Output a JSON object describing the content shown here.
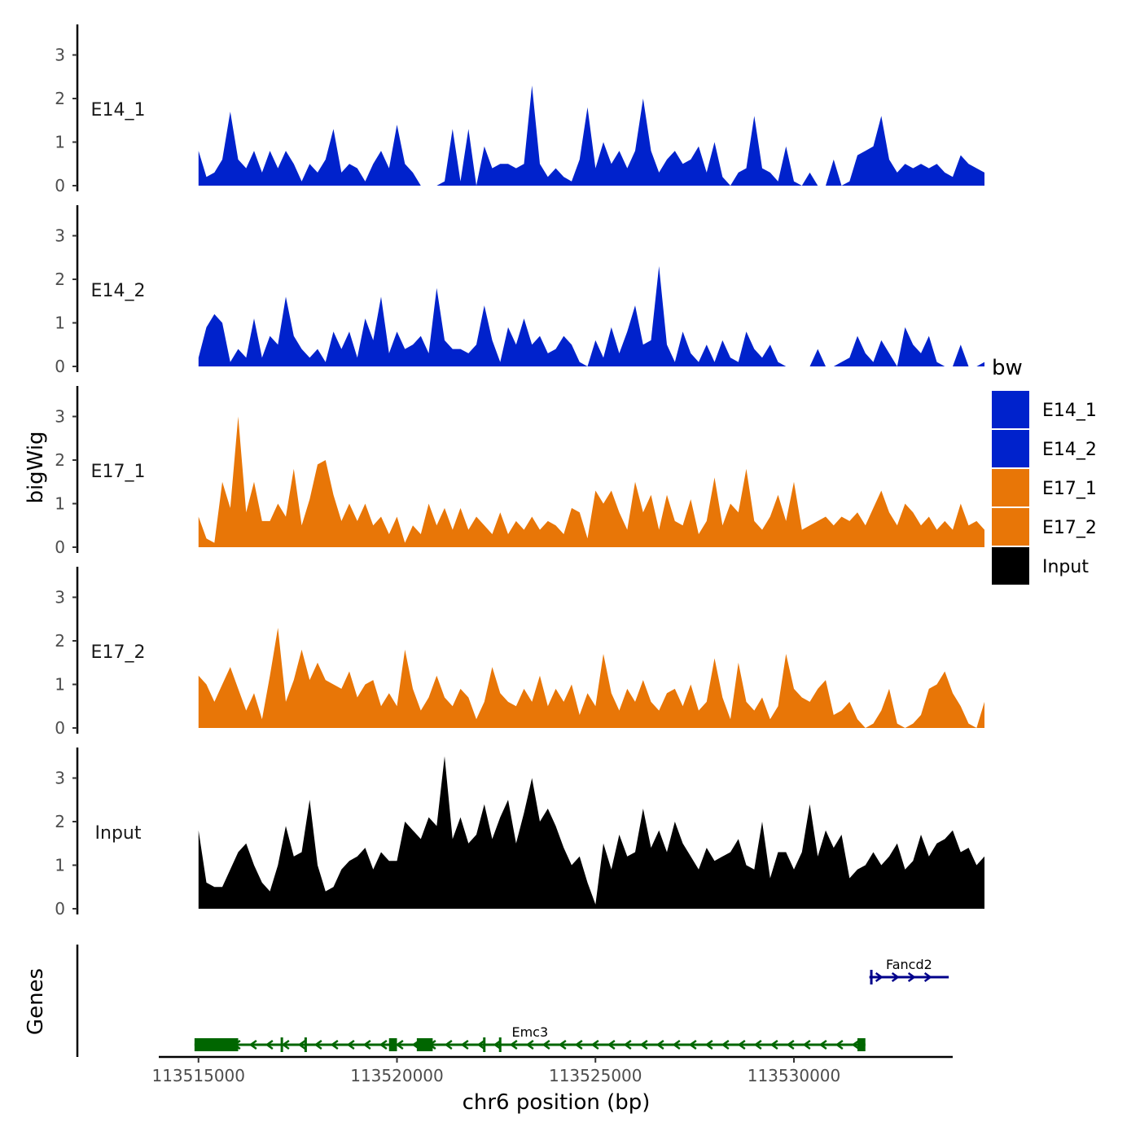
{
  "chart_data": {
    "type": "area",
    "chromosome": "chr6",
    "xlabel": "chr6 position (bp)",
    "ylabel": "bigWig",
    "genes_label": "Genes",
    "xlim": [
      113514000,
      113534000
    ],
    "x_ticks": [
      113515000,
      113520000,
      113525000,
      113530000
    ],
    "x_tick_labels": [
      "113515000",
      "113520000",
      "113525000",
      "113530000"
    ],
    "ylim": [
      0,
      3.6
    ],
    "y_ticks": [
      0,
      1,
      2,
      3
    ],
    "y_tick_labels": [
      "0",
      "1",
      "2",
      "3"
    ],
    "bin_start": 113515000,
    "bin_size": 200,
    "legend": {
      "title": "bw",
      "entries": [
        {
          "label": "E14_1",
          "color": "#0022cc"
        },
        {
          "label": "E14_2",
          "color": "#0022cc"
        },
        {
          "label": "E17_1",
          "color": "#e87607"
        },
        {
          "label": "E17_2",
          "color": "#e87607"
        },
        {
          "label": "Input",
          "color": "#000000"
        }
      ]
    },
    "series": [
      {
        "name": "E14_1",
        "color": "#0022cc",
        "values": [
          0.8,
          0.2,
          0.3,
          0.6,
          1.7,
          0.6,
          0.4,
          0.8,
          0.3,
          0.8,
          0.4,
          0.8,
          0.5,
          0.1,
          0.5,
          0.3,
          0.6,
          1.3,
          0.3,
          0.5,
          0.4,
          0.1,
          0.5,
          0.8,
          0.4,
          1.4,
          0.5,
          0.3,
          0,
          0,
          0,
          0.1,
          1.3,
          0.1,
          1.3,
          0,
          0.9,
          0.4,
          0.5,
          0.5,
          0.4,
          0.5,
          2.3,
          0.5,
          0.2,
          0.4,
          0.2,
          0.1,
          0.6,
          1.8,
          0.4,
          1.0,
          0.5,
          0.8,
          0.4,
          0.8,
          2.0,
          0.8,
          0.3,
          0.6,
          0.8,
          0.5,
          0.6,
          0.9,
          0.3,
          1.0,
          0.2,
          0,
          0.3,
          0.4,
          1.6,
          0.4,
          0.3,
          0.1,
          0.9,
          0.1,
          0,
          0.3,
          0,
          0,
          0.6,
          0,
          0.1,
          0.7,
          0.8,
          0.9,
          1.6,
          0.6,
          0.3,
          0.5,
          0.4,
          0.5,
          0.4,
          0.5,
          0.3,
          0.2,
          0.7,
          0.5,
          0.4,
          0.3
        ]
      },
      {
        "name": "E14_2",
        "color": "#0022cc",
        "values": [
          0.2,
          0.9,
          1.2,
          1.0,
          0.1,
          0.4,
          0.2,
          1.1,
          0.2,
          0.7,
          0.5,
          1.6,
          0.7,
          0.4,
          0.2,
          0.4,
          0.1,
          0.8,
          0.4,
          0.8,
          0.2,
          1.1,
          0.6,
          1.6,
          0.3,
          0.8,
          0.4,
          0.5,
          0.7,
          0.3,
          1.8,
          0.6,
          0.4,
          0.4,
          0.3,
          0.5,
          1.4,
          0.6,
          0.1,
          0.9,
          0.5,
          1.1,
          0.5,
          0.7,
          0.3,
          0.4,
          0.7,
          0.5,
          0.1,
          0,
          0.6,
          0.2,
          0.9,
          0.3,
          0.8,
          1.4,
          0.5,
          0.6,
          2.3,
          0.5,
          0.1,
          0.8,
          0.3,
          0.1,
          0.5,
          0.1,
          0.6,
          0.2,
          0.1,
          0.8,
          0.4,
          0.2,
          0.5,
          0.1,
          0,
          0,
          0,
          0,
          0.4,
          0,
          0,
          0.1,
          0.2,
          0.7,
          0.3,
          0.1,
          0.6,
          0.3,
          0,
          0.9,
          0.5,
          0.3,
          0.7,
          0.1,
          0,
          0,
          0.5,
          0,
          0,
          0.1
        ]
      },
      {
        "name": "E17_1",
        "color": "#e87607",
        "values": [
          0.7,
          0.2,
          0.1,
          1.5,
          0.9,
          3.0,
          0.8,
          1.5,
          0.6,
          0.6,
          1.0,
          0.7,
          1.8,
          0.5,
          1.1,
          1.9,
          2.0,
          1.2,
          0.6,
          1.0,
          0.6,
          1.0,
          0.5,
          0.7,
          0.3,
          0.7,
          0.1,
          0.5,
          0.3,
          1.0,
          0.5,
          0.9,
          0.4,
          0.9,
          0.4,
          0.7,
          0.5,
          0.3,
          0.8,
          0.3,
          0.6,
          0.4,
          0.7,
          0.4,
          0.6,
          0.5,
          0.3,
          0.9,
          0.8,
          0.2,
          1.3,
          1.0,
          1.3,
          0.8,
          0.4,
          1.5,
          0.8,
          1.2,
          0.4,
          1.2,
          0.6,
          0.5,
          1.1,
          0.3,
          0.6,
          1.6,
          0.5,
          1.0,
          0.8,
          1.8,
          0.6,
          0.4,
          0.7,
          1.2,
          0.6,
          1.5,
          0.4,
          0.5,
          0.6,
          0.7,
          0.5,
          0.7,
          0.6,
          0.8,
          0.5,
          0.9,
          1.3,
          0.8,
          0.5,
          1.0,
          0.8,
          0.5,
          0.7,
          0.4,
          0.6,
          0.4,
          1.0,
          0.5,
          0.6,
          0.4
        ]
      },
      {
        "name": "E17_2",
        "color": "#e87607",
        "values": [
          1.2,
          1.0,
          0.6,
          1.0,
          1.4,
          0.9,
          0.4,
          0.8,
          0.2,
          1.2,
          2.3,
          0.6,
          1.1,
          1.8,
          1.1,
          1.5,
          1.1,
          1.0,
          0.9,
          1.3,
          0.7,
          1.0,
          1.1,
          0.5,
          0.8,
          0.5,
          1.8,
          0.9,
          0.4,
          0.7,
          1.2,
          0.7,
          0.5,
          0.9,
          0.7,
          0.2,
          0.6,
          1.4,
          0.8,
          0.6,
          0.5,
          0.9,
          0.6,
          1.2,
          0.5,
          0.9,
          0.6,
          1.0,
          0.3,
          0.8,
          0.5,
          1.7,
          0.8,
          0.4,
          0.9,
          0.6,
          1.1,
          0.6,
          0.4,
          0.8,
          0.9,
          0.5,
          1.0,
          0.4,
          0.6,
          1.6,
          0.7,
          0.2,
          1.5,
          0.6,
          0.4,
          0.7,
          0.2,
          0.5,
          1.7,
          0.9,
          0.7,
          0.6,
          0.9,
          1.1,
          0.3,
          0.4,
          0.6,
          0.2,
          0,
          0.1,
          0.4,
          0.9,
          0.1,
          0,
          0.1,
          0.3,
          0.9,
          1.0,
          1.3,
          0.8,
          0.5,
          0.1,
          0,
          0.6
        ]
      },
      {
        "name": "Input",
        "color": "#000000",
        "values": [
          1.8,
          0.6,
          0.5,
          0.5,
          0.9,
          1.3,
          1.5,
          1.0,
          0.6,
          0.4,
          1.0,
          1.9,
          1.2,
          1.3,
          2.5,
          1.0,
          0.4,
          0.5,
          0.9,
          1.1,
          1.2,
          1.4,
          0.9,
          1.3,
          1.1,
          1.1,
          2.0,
          1.8,
          1.6,
          2.1,
          1.9,
          3.5,
          1.6,
          2.1,
          1.5,
          1.7,
          2.4,
          1.6,
          2.1,
          2.5,
          1.5,
          2.2,
          3.0,
          2.0,
          2.3,
          1.9,
          1.4,
          1.0,
          1.2,
          0.6,
          0.1,
          1.5,
          0.9,
          1.7,
          1.2,
          1.3,
          2.3,
          1.4,
          1.8,
          1.3,
          2.0,
          1.5,
          1.2,
          0.9,
          1.4,
          1.1,
          1.2,
          1.3,
          1.6,
          1.0,
          0.9,
          2.0,
          0.7,
          1.3,
          1.3,
          0.9,
          1.3,
          2.4,
          1.2,
          1.8,
          1.4,
          1.7,
          0.7,
          0.9,
          1.0,
          1.3,
          1.0,
          1.2,
          1.5,
          0.9,
          1.1,
          1.7,
          1.2,
          1.5,
          1.6,
          1.8,
          1.3,
          1.4,
          1.0,
          1.2
        ]
      }
    ],
    "genes": [
      {
        "name": "Emc3",
        "start": 113514900,
        "end": 113531800,
        "strand": "-",
        "color": "#006600",
        "exons": [
          [
            113514900,
            113516000
          ],
          [
            113519800,
            113520000
          ],
          [
            113520500,
            113520900
          ],
          [
            113531600,
            113531800
          ]
        ],
        "small_exons": [
          113517100,
          113517700,
          113522200,
          113522600
        ]
      },
      {
        "name": "Fancd2",
        "start": 113531900,
        "end": 113533900,
        "strand": "+",
        "color": "#00008b",
        "exons": [],
        "small_exons": [
          113531950
        ]
      }
    ]
  }
}
